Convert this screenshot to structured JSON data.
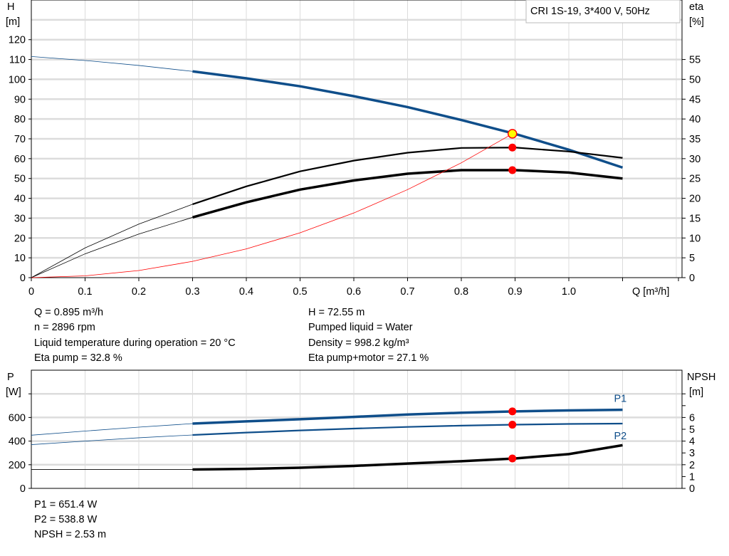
{
  "chart_data": [
    {
      "type": "line",
      "title": "",
      "legend": "CRI 1S-19, 3*400 V, 50Hz",
      "xlabel": "Q [m³/h]",
      "ylabel": "H [m]",
      "ylabel_title": "H",
      "ylabel_unit": "[m]",
      "y2label_title": "eta",
      "y2label_unit": "[%]",
      "xlim": [
        0,
        1.2
      ],
      "ylim": [
        0,
        140
      ],
      "y2lim": [
        0,
        70
      ],
      "grid": true,
      "xticks": [
        "0",
        "0.1",
        "0.2",
        "0.3",
        "0.4",
        "0.5",
        "0.6",
        "0.7",
        "0.8",
        "0.9",
        "1.0"
      ],
      "yticks": [
        "0",
        "10",
        "20",
        "30",
        "40",
        "50",
        "60",
        "70",
        "80",
        "90",
        "100",
        "110",
        "120"
      ],
      "y2ticks": [
        "0",
        "5",
        "10",
        "15",
        "20",
        "25",
        "30",
        "35",
        "40",
        "45",
        "50",
        "55"
      ],
      "x": [
        0,
        0.1,
        0.2,
        0.3,
        0.4,
        0.5,
        0.6,
        0.7,
        0.8,
        0.9,
        1.0,
        1.1
      ],
      "series": [
        {
          "id": "head",
          "axis": "left",
          "color": "#0f4e8a",
          "values": [
            111.5,
            109.5,
            107,
            104,
            100.5,
            96.5,
            91.5,
            86,
            79.5,
            72.5,
            64.5,
            55.5
          ]
        },
        {
          "id": "eta-pump",
          "axis": "right",
          "color": "#000000",
          "values": [
            0,
            7.5,
            13.5,
            18.5,
            23,
            26.8,
            29.5,
            31.5,
            32.7,
            32.8,
            31.8,
            30.2
          ]
        },
        {
          "id": "eta-pump-motor",
          "axis": "right",
          "color": "#000000",
          "values": [
            0,
            6,
            11,
            15.2,
            19,
            22.2,
            24.5,
            26.2,
            27.1,
            27.1,
            26.5,
            25
          ]
        },
        {
          "id": "system-curve",
          "axis": "left",
          "color": "#ff0000",
          "values": [
            0,
            0.9,
            3.6,
            8.2,
            14.5,
            22.6,
            32.6,
            44.4,
            57.9,
            73.3,
            90.6,
            109.6
          ]
        }
      ],
      "operating_point": {
        "Q": 0.895,
        "H": 72.55,
        "eta_pump": 32.8,
        "eta_pump_motor": 27.1
      }
    },
    {
      "type": "line",
      "ylabel_title": "P",
      "ylabel_unit": "[W]",
      "y2label_title": "NPSH",
      "y2label_unit": "[m]",
      "xlim": [
        0,
        1.2
      ],
      "ylim": [
        0,
        1000
      ],
      "y2lim": [
        0,
        10
      ],
      "grid": true,
      "yticks": [
        "0",
        "200",
        "400",
        "600",
        ""
      ],
      "y2ticks": [
        "0",
        "1",
        "2",
        "3",
        "4",
        "5",
        "6",
        "",
        ""
      ],
      "x": [
        0,
        0.1,
        0.2,
        0.3,
        0.4,
        0.5,
        0.6,
        0.7,
        0.8,
        0.9,
        1.0,
        1.1
      ],
      "series": [
        {
          "id": "p1",
          "name": "P1",
          "axis": "left",
          "color": "#0f4e8a",
          "values": [
            450,
            485,
            518,
            548,
            567,
            585,
            605,
            625,
            640,
            651,
            660,
            665
          ]
        },
        {
          "id": "p2",
          "name": "P2",
          "axis": "left",
          "color": "#0f4e8a",
          "values": [
            370,
            400,
            428,
            452,
            472,
            490,
            506,
            520,
            531,
            539,
            545,
            548
          ]
        },
        {
          "id": "npsh",
          "axis": "right",
          "color": "#000000",
          "values": [
            1.6,
            1.6,
            1.6,
            1.6,
            1.65,
            1.75,
            1.9,
            2.1,
            2.3,
            2.53,
            2.9,
            3.65
          ]
        }
      ],
      "operating_point": {
        "Q": 0.895,
        "P1": 651.4,
        "P2": 538.8,
        "NPSH": 2.53
      }
    }
  ],
  "info": {
    "q": "Q = 0.895 m³/h",
    "n": "n = 2896 rpm",
    "temp": "Liquid temperature during operation = 20 °C",
    "eta_pump": "Eta pump = 32.8 %",
    "h": "H = 72.55 m",
    "liquid": "Pumped liquid = Water",
    "density": "Density = 998.2 kg/m³",
    "eta_pm": "Eta pump+motor = 27.1 %",
    "p1": "P1 = 651.4 W",
    "p2": "P2 = 538.8 W",
    "npsh": "NPSH = 2.53 m"
  }
}
